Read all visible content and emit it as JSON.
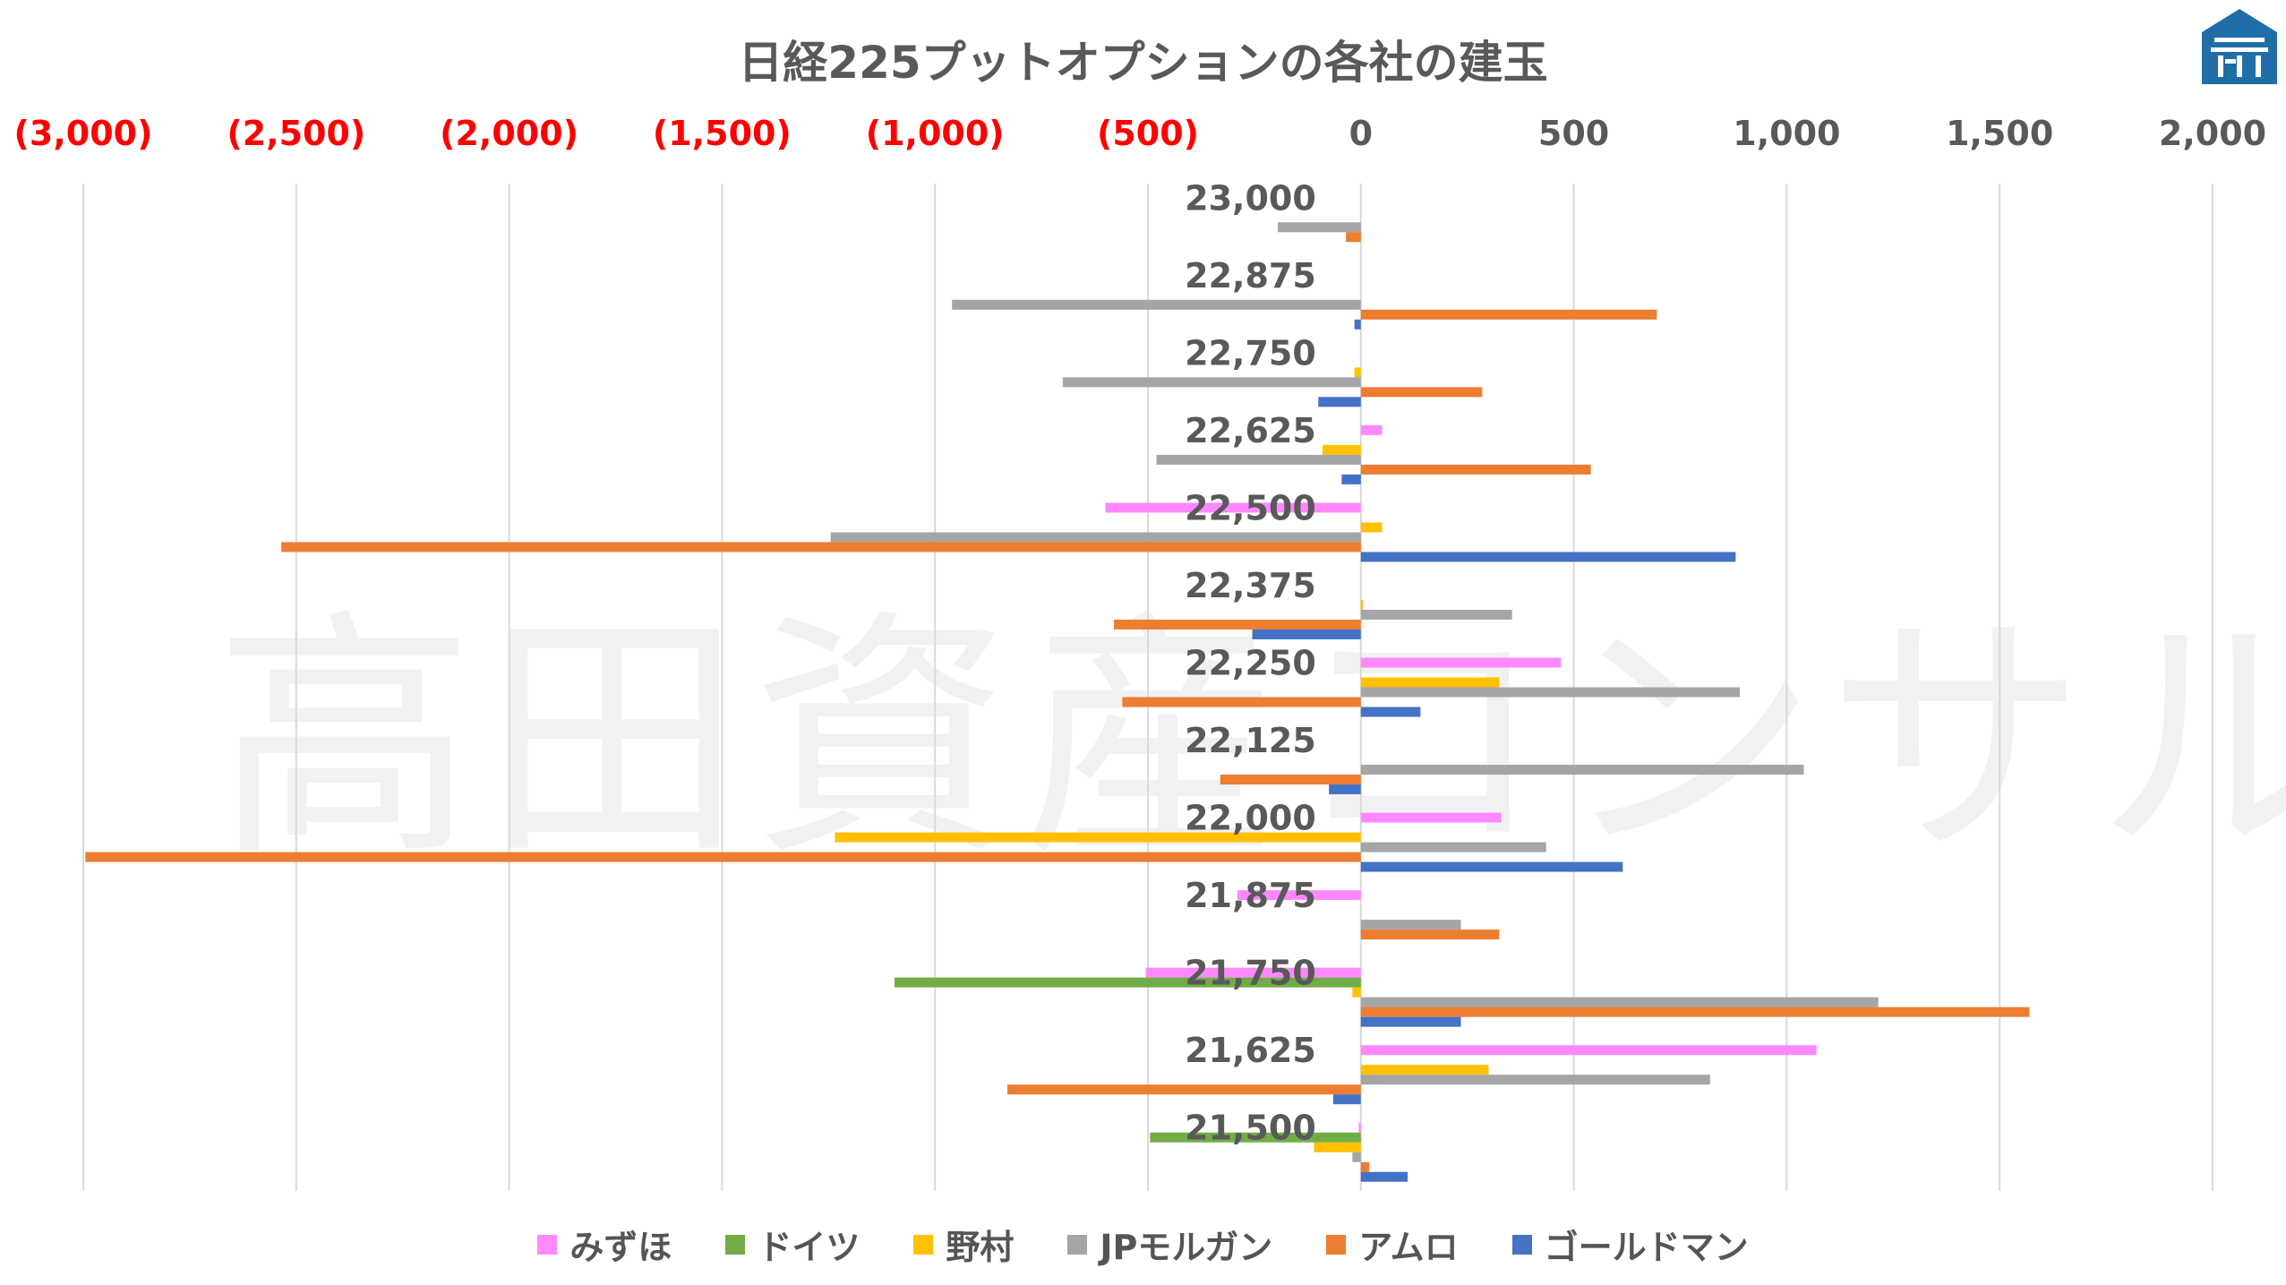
{
  "chart_data": {
    "type": "bar",
    "orientation": "horizontal",
    "title": "日経225プットオプションの各社の建玉",
    "watermark": "高田資産コンサル",
    "categories": [
      "23,000",
      "22,875",
      "22,750",
      "22,625",
      "22,500",
      "22,375",
      "22,250",
      "22,125",
      "22,000",
      "21,875",
      "21,750",
      "21,625",
      "21,500"
    ],
    "xlim": [
      -3000,
      2000
    ],
    "x_ticks": [
      {
        "value": -3000,
        "label": "(3,000)",
        "negative": true
      },
      {
        "value": -2500,
        "label": "(2,500)",
        "negative": true
      },
      {
        "value": -2000,
        "label": "(2,000)",
        "negative": true
      },
      {
        "value": -1500,
        "label": "(1,500)",
        "negative": true
      },
      {
        "value": -1000,
        "label": "(1,000)",
        "negative": true
      },
      {
        "value": -500,
        "label": "(500)",
        "negative": true
      },
      {
        "value": 0,
        "label": "0",
        "negative": false
      },
      {
        "value": 500,
        "label": "500",
        "negative": false
      },
      {
        "value": 1000,
        "label": "1,000",
        "negative": false
      },
      {
        "value": 1500,
        "label": "1,500",
        "negative": false
      },
      {
        "value": 2000,
        "label": "2,000",
        "negative": false
      }
    ],
    "grid": true,
    "legend_position": "bottom",
    "series": [
      {
        "name": "みずほ",
        "color": "#FF88FF",
        "values": [
          0,
          0,
          0,
          50,
          -600,
          0,
          470,
          0,
          330,
          -290,
          -505,
          1070,
          -5
        ]
      },
      {
        "name": "ドイツ",
        "color": "#70AD47",
        "values": [
          0,
          0,
          0,
          0,
          0,
          0,
          0,
          0,
          0,
          0,
          -1095,
          0,
          -495
        ]
      },
      {
        "name": "野村",
        "color": "#FFC000",
        "values": [
          0,
          0,
          -15,
          -90,
          50,
          5,
          325,
          0,
          -1235,
          0,
          -20,
          300,
          -110
        ]
      },
      {
        "name": "JPモルガン",
        "color": "#A5A5A5",
        "values": [
          -195,
          -960,
          -700,
          -480,
          -1245,
          355,
          890,
          1040,
          435,
          235,
          1215,
          820,
          -20
        ]
      },
      {
        "name": "アムロ",
        "color": "#ED7D31",
        "values": [
          -35,
          695,
          285,
          540,
          -2535,
          -580,
          -560,
          -330,
          -2995,
          325,
          1570,
          -830,
          20
        ]
      },
      {
        "name": "ゴールドマン",
        "color": "#4472C4",
        "values": [
          0,
          -15,
          -100,
          -45,
          880,
          -255,
          140,
          -75,
          615,
          0,
          235,
          -65,
          110
        ]
      }
    ],
    "colors": {
      "negative_tick": "#FF0000",
      "positive_tick": "#595959",
      "logo": "#1F6EA8"
    }
  }
}
